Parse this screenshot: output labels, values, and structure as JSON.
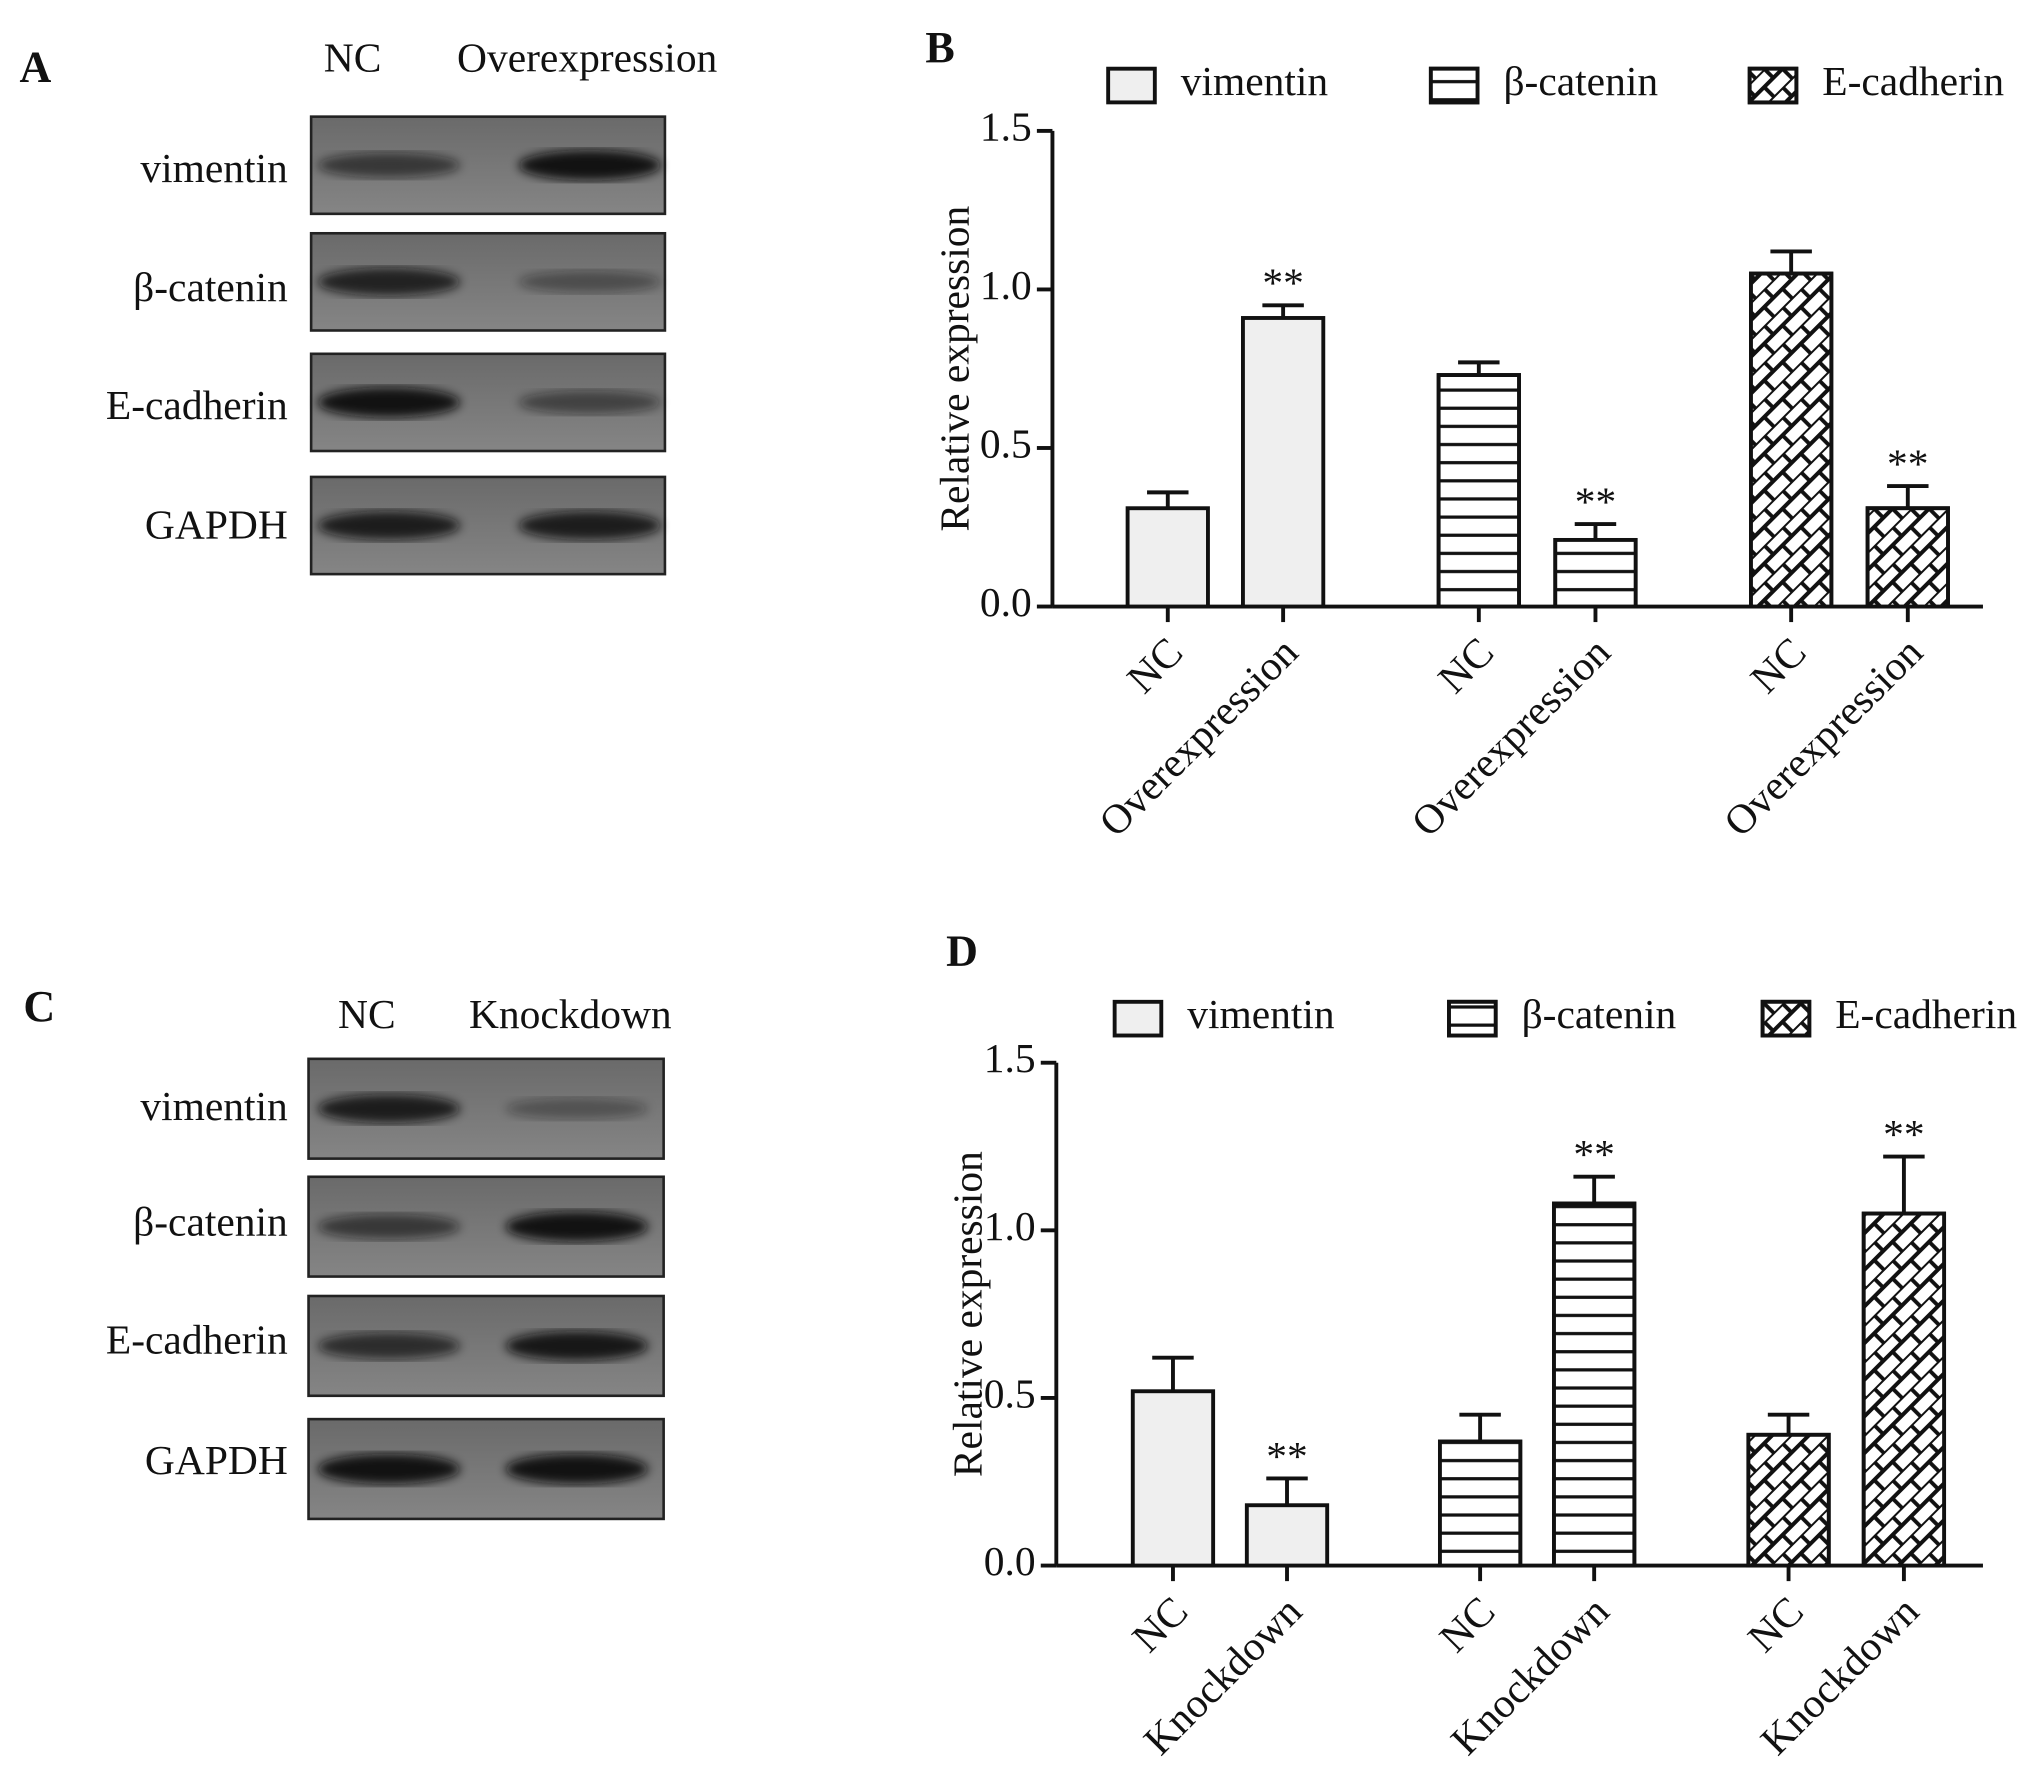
{
  "blots": [
    {
      "panel": "A",
      "lanes": [
        "NC",
        "Overexpression"
      ],
      "rows": [
        "vimentin",
        "β-catenin",
        "E-cadherin",
        "GAPDH"
      ]
    },
    {
      "panel": "C",
      "lanes": [
        "NC",
        "Knockdown"
      ],
      "rows": [
        "vimentin",
        "β-catenin",
        "E-cadherin",
        "GAPDH"
      ]
    }
  ],
  "chart_data": [
    {
      "type": "bar",
      "panel": "B",
      "ylabel": "Relative expression",
      "categories": [
        "NC",
        "Overexpression",
        "NC",
        "Overexpression",
        "NC",
        "Overexpression"
      ],
      "ylim": [
        0,
        1.5
      ],
      "yticks": [
        {
          "value": 0,
          "label": "0.0"
        },
        0.5,
        {
          "value": 1,
          "label": "1.0"
        },
        1.5
      ],
      "series": [
        {
          "name": "vimentin",
          "color": "#efefef",
          "pattern": "solid",
          "values": [
            0.31,
            0.91,
            null,
            null,
            null,
            null
          ],
          "errors": [
            0.05,
            0.04,
            null,
            null,
            null,
            null
          ],
          "significance": [
            null,
            "**",
            null,
            null,
            null,
            null
          ]
        },
        {
          "name": "β-catenin",
          "color": "#ffffff",
          "pattern": "horizontal",
          "values": [
            null,
            null,
            0.73,
            0.21,
            null,
            null
          ],
          "errors": [
            null,
            null,
            0.04,
            0.05,
            null,
            null
          ],
          "significance": [
            null,
            null,
            null,
            "**",
            null,
            null
          ]
        },
        {
          "name": "E-cadherin",
          "color": "#ffffff",
          "pattern": "diagonal-brick",
          "values": [
            null,
            null,
            null,
            null,
            1.05,
            0.31
          ],
          "errors": [
            null,
            null,
            null,
            null,
            0.07,
            0.07
          ],
          "significance": [
            null,
            null,
            null,
            null,
            null,
            "**"
          ]
        }
      ]
    },
    {
      "type": "bar",
      "panel": "D",
      "ylabel": "Relative expression",
      "categories": [
        "NC",
        "Knockdown",
        "NC",
        "Knockdown",
        "NC",
        "Knockdown"
      ],
      "ylim": [
        0,
        1.5
      ],
      "yticks": [
        {
          "value": 0,
          "label": "0.0"
        },
        0.5,
        {
          "value": 1,
          "label": "1.0"
        },
        1.5
      ],
      "series": [
        {
          "name": "vimentin",
          "color": "#efefef",
          "pattern": "solid",
          "values": [
            0.52,
            0.18,
            null,
            null,
            null,
            null
          ],
          "errors": [
            0.1,
            0.08,
            null,
            null,
            null,
            null
          ],
          "significance": [
            null,
            "**",
            null,
            null,
            null,
            null
          ]
        },
        {
          "name": "β-catenin",
          "color": "#ffffff",
          "pattern": "horizontal",
          "values": [
            null,
            null,
            0.37,
            1.08,
            null,
            null
          ],
          "errors": [
            null,
            null,
            0.08,
            0.08,
            null,
            null
          ],
          "significance": [
            null,
            null,
            null,
            "**",
            null,
            null
          ]
        },
        {
          "name": "E-cadherin",
          "color": "#ffffff",
          "pattern": "diagonal-brick",
          "values": [
            null,
            null,
            null,
            null,
            0.39,
            1.05
          ],
          "errors": [
            null,
            null,
            null,
            null,
            0.06,
            0.17
          ],
          "significance": [
            null,
            null,
            null,
            null,
            null,
            "**"
          ]
        }
      ]
    }
  ]
}
